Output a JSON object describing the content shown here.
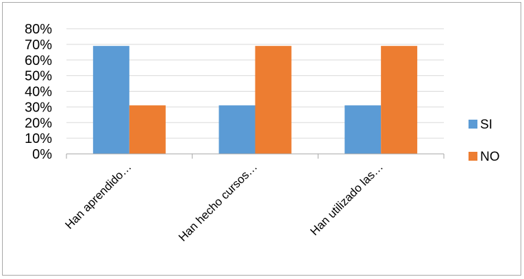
{
  "chart_data": {
    "type": "bar",
    "categories": [
      "Han aprendido…",
      "Han hecho cursos…",
      "Han utilizado las…"
    ],
    "series": [
      {
        "name": "SI",
        "values": [
          69,
          31,
          31
        ],
        "color": "#5b9bd5"
      },
      {
        "name": "NO",
        "values": [
          31,
          69,
          69
        ],
        "color": "#ed7d31"
      }
    ],
    "ylim": [
      0,
      80
    ],
    "yticks": [
      0,
      10,
      20,
      30,
      40,
      50,
      60,
      70,
      80
    ],
    "ytick_labels": [
      "0%",
      "10%",
      "20%",
      "30%",
      "40%",
      "50%",
      "60%",
      "70%",
      "80%"
    ],
    "grid": true,
    "legend_position": "right",
    "gridline_color": "#d9d9d9",
    "axis_color": "#a6a6a6"
  }
}
